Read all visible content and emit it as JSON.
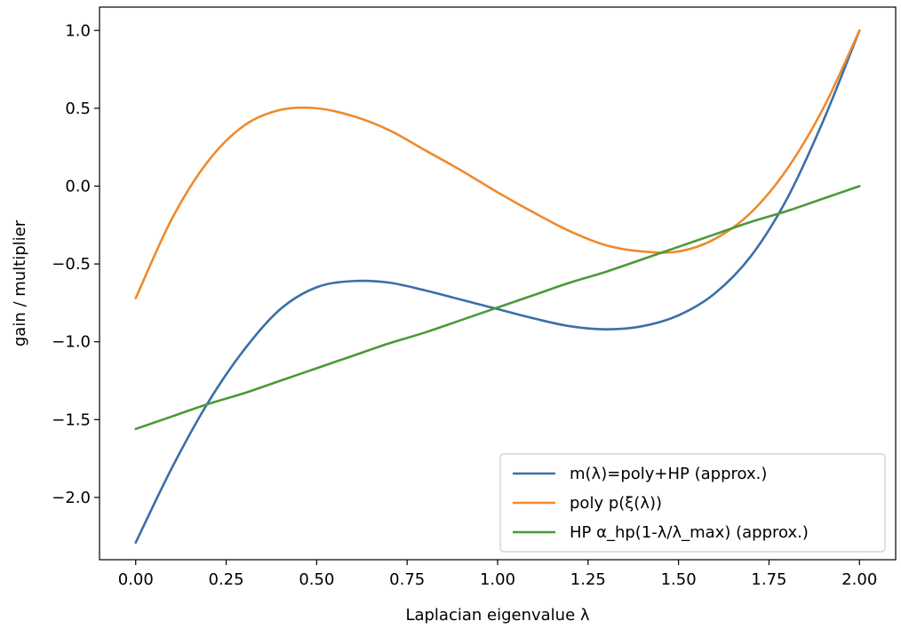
{
  "chart_data": {
    "type": "line",
    "title": "",
    "xlabel": "Laplacian eigenvalue λ",
    "ylabel": "gain / multiplier",
    "xlim": [
      -0.1,
      2.1
    ],
    "ylim": [
      -2.4,
      1.15
    ],
    "xticks": [
      0.0,
      0.25,
      0.5,
      0.75,
      1.0,
      1.25,
      1.5,
      1.75,
      2.0
    ],
    "xtick_labels": [
      "0.00",
      "0.25",
      "0.50",
      "0.75",
      "1.00",
      "1.25",
      "1.50",
      "1.75",
      "2.00"
    ],
    "yticks": [
      -2.0,
      -1.5,
      -1.0,
      -0.5,
      0.0,
      0.5,
      1.0
    ],
    "ytick_labels": [
      "−2.0",
      "−1.5",
      "−1.0",
      "−0.5",
      "0.0",
      "0.5",
      "1.0"
    ],
    "grid": false,
    "legend_position": "lower-right",
    "x": [
      0.0,
      0.1,
      0.2,
      0.3,
      0.4,
      0.5,
      0.6,
      0.7,
      0.8,
      0.9,
      1.0,
      1.1,
      1.2,
      1.3,
      1.4,
      1.5,
      1.6,
      1.7,
      1.8,
      1.9,
      2.0
    ],
    "series": [
      {
        "name": "m(λ)=poly+HP (approx.)",
        "color": "#3b6fa8",
        "values": [
          -2.29,
          -1.81,
          -1.39,
          -1.05,
          -0.79,
          -0.65,
          -0.61,
          -0.62,
          -0.67,
          -0.73,
          -0.79,
          -0.85,
          -0.9,
          -0.92,
          -0.9,
          -0.83,
          -0.69,
          -0.45,
          -0.08,
          0.42,
          1.0
        ]
      },
      {
        "name": "poly p(ξ(λ))",
        "color": "#ef8a2e",
        "values": [
          -0.72,
          -0.21,
          0.16,
          0.39,
          0.49,
          0.5,
          0.45,
          0.36,
          0.23,
          0.1,
          -0.04,
          -0.17,
          -0.29,
          -0.38,
          -0.42,
          -0.42,
          -0.34,
          -0.17,
          0.11,
          0.5,
          1.0
        ]
      },
      {
        "name": "HP α_hp(1-λ/λ_max) (approx.)",
        "color": "#4a9a3a",
        "values": [
          -1.56,
          -1.48,
          -1.4,
          -1.33,
          -1.25,
          -1.17,
          -1.09,
          -1.01,
          -0.94,
          -0.86,
          -0.78,
          -0.7,
          -0.62,
          -0.55,
          -0.47,
          -0.39,
          -0.31,
          -0.23,
          -0.16,
          -0.08,
          0.0
        ]
      }
    ]
  }
}
